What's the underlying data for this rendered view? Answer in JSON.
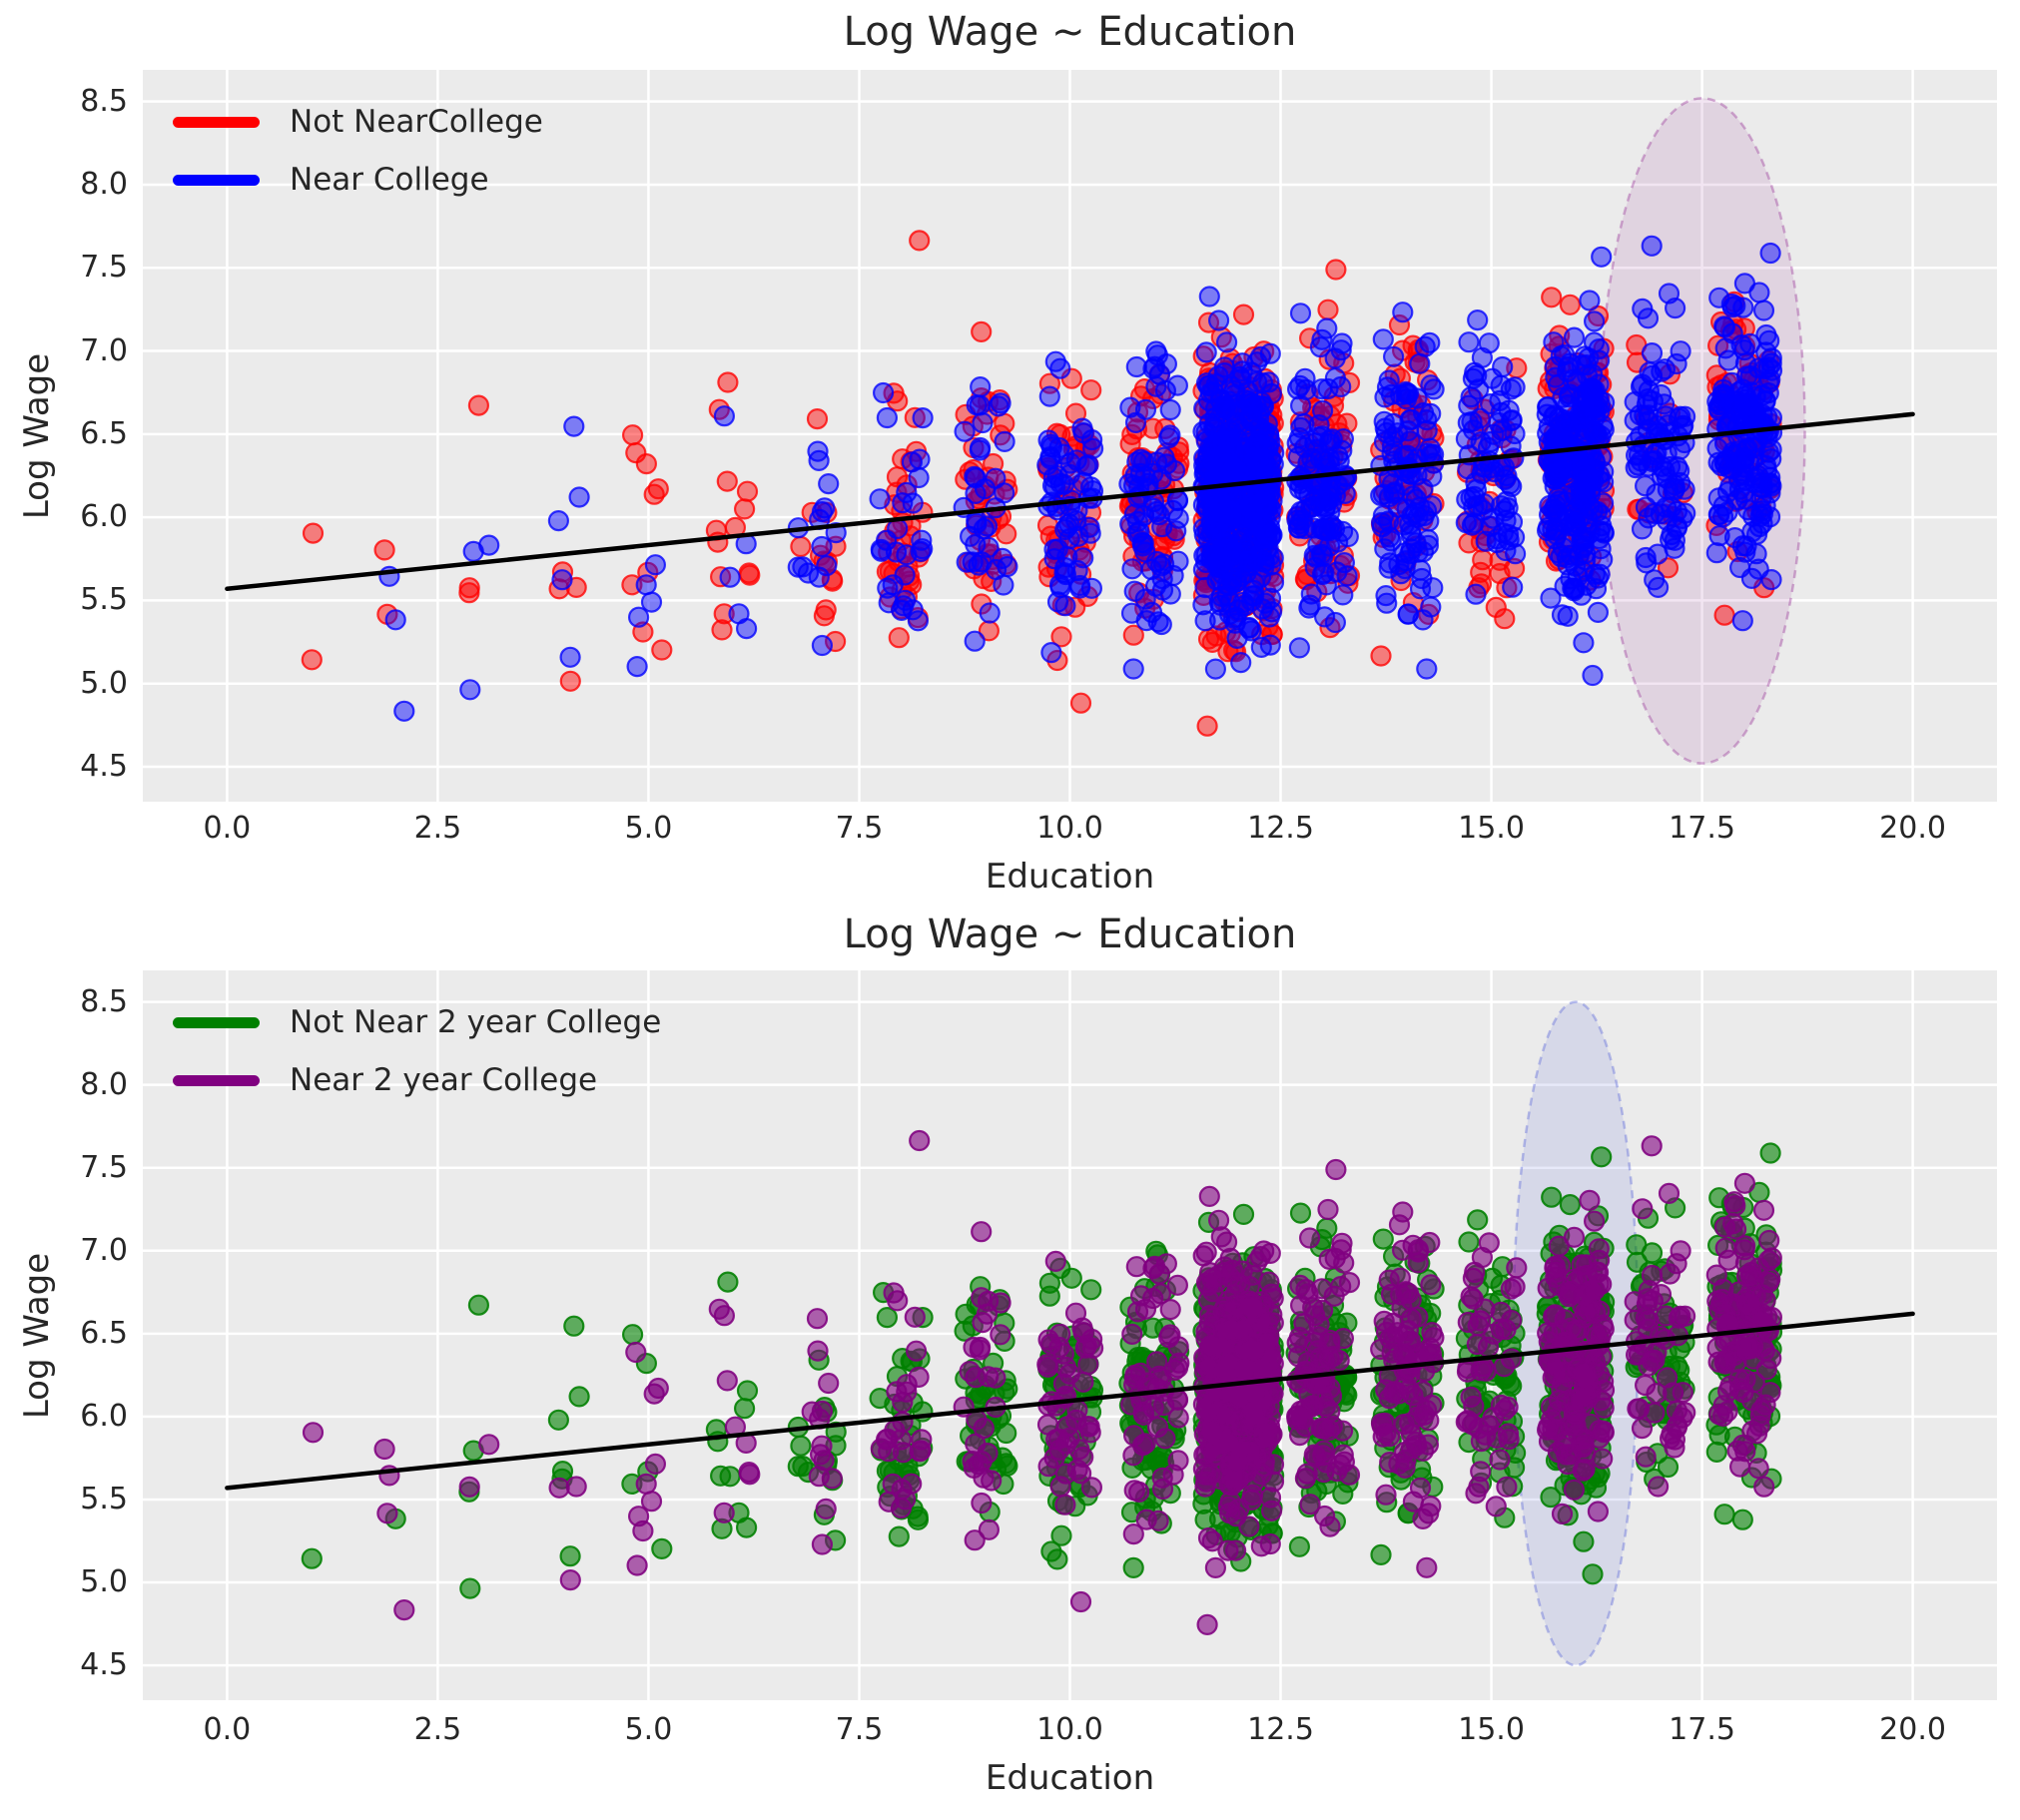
{
  "colors": {
    "figure_background": "#ffffff",
    "plot_background": "#ebebeb",
    "grid": "#ffffff",
    "text": "#262626",
    "regression_line": "#000000",
    "not_near_college": "#ff0000",
    "near_college": "#0000ff",
    "not_near_2yr_college": "#008000",
    "near_2yr_college": "#800080"
  },
  "chart_data": [
    {
      "type": "scatter",
      "title": "Log Wage ~ Education",
      "xlabel": "Education",
      "ylabel": "Log Wage",
      "xlim": [
        -1.0,
        21.0
      ],
      "ylim": [
        4.29,
        8.69
      ],
      "xticks": [
        0,
        2.5,
        5,
        7.5,
        10,
        12.5,
        15,
        17.5,
        20
      ],
      "xtick_labels": [
        "0.0",
        "2.5",
        "5.0",
        "7.5",
        "10.0",
        "12.5",
        "15.0",
        "17.5",
        "20.0"
      ],
      "yticks": [
        4.5,
        5.0,
        5.5,
        6.0,
        6.5,
        7.0,
        7.5,
        8.0,
        8.5
      ],
      "ytick_labels": [
        "4.5",
        "5.0",
        "5.5",
        "6.0",
        "6.5",
        "7.0",
        "7.5",
        "8.0",
        "8.5"
      ],
      "grid": true,
      "legend_position": "upper left",
      "series": [
        {
          "name": "Not NearCollege",
          "color": "#ff0000",
          "fill_alpha": 0.47,
          "edge_alpha": 0.78,
          "group_key": "g4",
          "group_value": 0
        },
        {
          "name": "Near College",
          "color": "#0000ff",
          "fill_alpha": 0.47,
          "edge_alpha": 0.78,
          "group_key": "g4",
          "group_value": 1
        }
      ],
      "regression_line": {
        "x1": 0,
        "y1": 5.57,
        "x2": 20,
        "y2": 6.62,
        "color": "#000000"
      },
      "ellipse_annotation": {
        "cx": 17.5,
        "cy": 6.52,
        "rx": 1.22,
        "ry": 2.0,
        "fill": "rgba(128,0,128,0.10)",
        "stroke": "rgba(128,0,128,0.30)",
        "dashed": true
      },
      "points": "see shared_scatter (same jittered dataset as second panel, colored by 4-year-college proximity)"
    },
    {
      "type": "scatter",
      "title": "Log Wage ~ Education",
      "xlabel": "Education",
      "ylabel": "Log Wage",
      "xlim": [
        -1.0,
        21.0
      ],
      "ylim": [
        4.29,
        8.69
      ],
      "xticks": [
        0,
        2.5,
        5,
        7.5,
        10,
        12.5,
        15,
        17.5,
        20
      ],
      "xtick_labels": [
        "0.0",
        "2.5",
        "5.0",
        "7.5",
        "10.0",
        "12.5",
        "15.0",
        "17.5",
        "20.0"
      ],
      "yticks": [
        4.5,
        5.0,
        5.5,
        6.0,
        6.5,
        7.0,
        7.5,
        8.0,
        8.5
      ],
      "ytick_labels": [
        "4.5",
        "5.0",
        "5.5",
        "6.0",
        "6.5",
        "7.0",
        "7.5",
        "8.0",
        "8.5"
      ],
      "grid": true,
      "legend_position": "upper left",
      "series": [
        {
          "name": "Not Near 2 year College",
          "color": "#008000",
          "fill_alpha": 0.6,
          "edge_alpha": 0.88,
          "group_key": "g2",
          "group_value": 0
        },
        {
          "name": "Near 2 year College",
          "color": "#800080",
          "fill_alpha": 0.6,
          "edge_alpha": 0.88,
          "group_key": "g2",
          "group_value": 1
        }
      ],
      "regression_line": {
        "x1": 0,
        "y1": 5.57,
        "x2": 20,
        "y2": 6.62,
        "color": "#000000"
      },
      "ellipse_annotation": {
        "cx": 16.0,
        "cy": 6.5,
        "rx": 0.74,
        "ry": 2.0,
        "fill": "rgba(92,107,214,0.15)",
        "stroke": "rgba(105,115,220,0.45)",
        "dashed": true
      },
      "points": "see shared_scatter (same jittered dataset as first panel, colored by 2-year-college proximity)"
    }
  ],
  "shared_scatter": {
    "description": "Single wage dataset plotted in both panels: log hourly wage vs years of education. Points sit in jittered vertical strips at integer education levels; density peaks at 12 and 16 years. Wage spread is roughly normal around the fitted line (log wage = 5.57 + 0.052 x education), between about 4.6 and 7.8.",
    "seed": 42,
    "education_levels": [
      1,
      2,
      3,
      4,
      5,
      6,
      7,
      8,
      9,
      10,
      11,
      12,
      13,
      14,
      15,
      16,
      17,
      18
    ],
    "counts": [
      2,
      5,
      6,
      9,
      14,
      18,
      28,
      65,
      75,
      110,
      135,
      750,
      190,
      170,
      115,
      350,
      110,
      230
    ],
    "jitter_halfwidth": [
      0.1,
      0.15,
      0.15,
      0.18,
      0.2,
      0.22,
      0.24,
      0.26,
      0.26,
      0.28,
      0.3,
      0.42,
      0.32,
      0.32,
      0.3,
      0.34,
      0.3,
      0.33
    ],
    "wage_mean_intercept": 5.55,
    "wage_mean_slope": 0.05,
    "wage_sd": 0.4,
    "wage_min": 4.58,
    "wage_max": 7.8,
    "prob_near_college": [
      0.5,
      0.5,
      0.5,
      0.5,
      0.5,
      0.5,
      0.52,
      0.52,
      0.55,
      0.56,
      0.58,
      0.58,
      0.62,
      0.66,
      0.7,
      0.74,
      0.78,
      0.8
    ],
    "prob_near_2yr": 0.45
  }
}
